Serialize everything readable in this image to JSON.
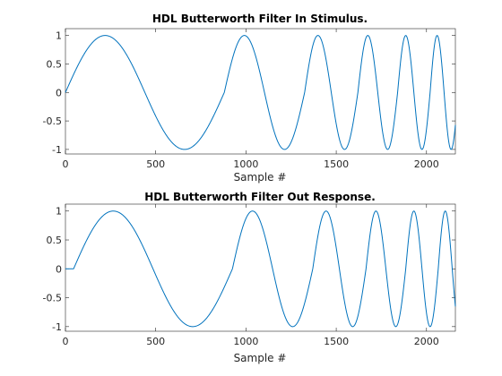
{
  "chart_data": [
    {
      "type": "line",
      "title": "HDL Butterworth Filter In Stimulus.",
      "xlabel": "Sample #",
      "ylabel": "",
      "xlim": [
        0,
        2160
      ],
      "ylim": [
        -1.08,
        1.12
      ],
      "xticks": [
        0,
        500,
        1000,
        1500,
        2000
      ],
      "xtick_labels": [
        "0",
        "500",
        "1000",
        "1500",
        "2000"
      ],
      "yticks": [
        -1,
        -0.5,
        0,
        0.5,
        1
      ],
      "ytick_labels": [
        "-1",
        "-0.5",
        "0",
        "0.5",
        "1"
      ],
      "grid": false,
      "color": "#0072BD",
      "series": [
        {
          "segments": [
            {
              "x_start": 0,
              "x_end": 880,
              "period": 880,
              "y0": 0,
              "y1": 0
            },
            {
              "x_start": 880,
              "x_end": 1325,
              "period": 445,
              "y0": 0,
              "y1": 0
            },
            {
              "x_start": 1325,
              "x_end": 1620,
              "period": 295,
              "y0": 0,
              "y1": 0
            },
            {
              "x_start": 1620,
              "x_end": 1840,
              "period": 220,
              "y0": 0,
              "y1": 0
            },
            {
              "x_start": 1840,
              "x_end": 2020,
              "period": 180,
              "y0": 0,
              "y1": 0
            },
            {
              "x_start": 2020,
              "x_end": 2160,
              "period": 155,
              "y0": 0,
              "y1": 0
            }
          ]
        }
      ]
    },
    {
      "type": "line",
      "title": "HDL Butterworth Filter Out Response.",
      "xlabel": "Sample #",
      "ylabel": "",
      "xlim": [
        0,
        2160
      ],
      "ylim": [
        -1.08,
        1.12
      ],
      "xticks": [
        0,
        500,
        1000,
        1500,
        2000
      ],
      "xtick_labels": [
        "0",
        "500",
        "1000",
        "1500",
        "2000"
      ],
      "yticks": [
        -1,
        -0.5,
        0,
        0.5,
        1
      ],
      "ytick_labels": [
        "-1",
        "-0.5",
        "0",
        "0.5",
        "1"
      ],
      "grid": false,
      "color": "#0072BD",
      "series": [
        {
          "delay": 45,
          "segments": [
            {
              "x_start": 0,
              "x_end": 880,
              "period": 880,
              "y0": 0,
              "y1": 0
            },
            {
              "x_start": 880,
              "x_end": 1325,
              "period": 445,
              "y0": 0,
              "y1": 0
            },
            {
              "x_start": 1325,
              "x_end": 1620,
              "period": 295,
              "y0": 0,
              "y1": 0
            },
            {
              "x_start": 1620,
              "x_end": 1840,
              "period": 220,
              "y0": 0,
              "y1": 0
            },
            {
              "x_start": 1840,
              "x_end": 2020,
              "period": 180,
              "y0": 0,
              "y1": 0
            },
            {
              "x_start": 2020,
              "x_end": 2160,
              "period": 155,
              "y0": 0,
              "y1": 0
            }
          ]
        }
      ]
    }
  ]
}
